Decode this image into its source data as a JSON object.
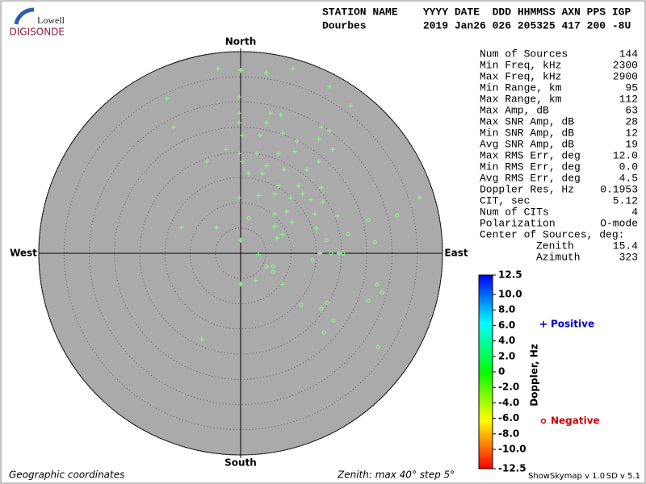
{
  "chart_data": {
    "type": "skymap",
    "logo": {
      "top": "Lowell",
      "bottom": "DIGISONDE"
    },
    "header": {
      "labels": "STATION NAME    YYYY DATE  DDD HHMMSS AXN PPS IGP",
      "values": "Dourbes         2019 Jan26 026 205325 417 200 -8U"
    },
    "directions": {
      "north": "North",
      "south": "South",
      "west": "West",
      "east": "East"
    },
    "zlim": [
      0,
      40
    ],
    "zticks": [
      5,
      10,
      15,
      20,
      25,
      30,
      35,
      40
    ],
    "plot_color": "#aaaaaa",
    "point_color": "#88ff88",
    "series": [
      {
        "name": "Positive",
        "color": "#0000cc",
        "marker": "plus",
        "x": [
          -4.5,
          0,
          5.1,
          10.4,
          17.6,
          -14.6,
          -0.3,
          21.8,
          -13.3,
          -0.3,
          5.9,
          8.0,
          16.0,
          17.6,
          -0.3,
          5.1,
          0.3,
          3.8,
          8.3,
          11.2,
          15.5,
          18.2,
          -2.9,
          -0.3,
          3.2,
          7.5,
          10.7,
          -6.7,
          0.3,
          5.1,
          8.6,
          13.1,
          15.5,
          1.6,
          4.3,
          7.5,
          11.5,
          16.0,
          -0.3,
          3.5,
          6.7,
          9.9,
          13.9,
          16.3,
          35.5,
          6.7,
          9.1,
          14.7,
          19.2,
          -11.7,
          -4.8,
          6.7,
          8.3,
          15.0,
          0,
          7.2,
          3.5,
          15.7,
          19.5,
          0,
          3.0,
          8.3,
          -7.7,
          10.2,
          12.3
        ],
        "values": [
          36.6,
          36.3,
          35.8,
          36.6,
          33.1,
          30.7,
          31.0,
          29.3,
          25.0,
          27.8,
          27.8,
          27.5,
          25.0,
          24.3,
          25.9,
          25.9,
          23.4,
          23.4,
          23.8,
          22.2,
          22.7,
          20.6,
          20.6,
          19.8,
          19.8,
          19.8,
          20.2,
          18.2,
          18.2,
          17.4,
          16.6,
          16.6,
          18.2,
          15.8,
          15.8,
          13.4,
          13.4,
          13.1,
          11.0,
          11.5,
          11.8,
          11.0,
          10.6,
          10.2,
          11.0,
          7.8,
          8.3,
          7.8,
          7.4,
          5.1,
          5.1,
          5.4,
          3.8,
          5.0,
          2.6,
          3.0,
          -0.2,
          0,
          0,
          -6.1,
          -5.4,
          -6.1,
          -17.0,
          6.2,
          11.8
        ]
      },
      {
        "name": "Negative",
        "color": "#cc0000",
        "marker": "circle",
        "x": [
          31.0,
          25.3,
          21.3,
          26.6,
          17.0,
          17.9,
          20.3,
          14.2,
          6.4,
          6.4,
          27.0,
          28.0,
          25.3,
          17.1,
          12.0,
          16.0,
          18.4,
          16.5,
          27.2,
          1.6,
          5.1
        ],
        "values": [
          7.5,
          6.6,
          3.8,
          2.2,
          2.6,
          0,
          0,
          -1.3,
          -2.6,
          -3.7,
          -6.2,
          -7.8,
          -9.4,
          -9.8,
          -10.2,
          -11.0,
          -13.3,
          -15.7,
          -18.6,
          7.0,
          -2.6
        ]
      }
    ],
    "stats": [
      [
        "Num of Sources",
        "144"
      ],
      [
        "Min Freq, kHz",
        "2300"
      ],
      [
        "Max Freq, kHz",
        "2900"
      ],
      [
        "Min Range, km",
        "95"
      ],
      [
        "Max Range, km",
        "112"
      ],
      [
        "Max Amp, dB",
        "63"
      ],
      [
        "Max SNR Amp, dB",
        "28"
      ],
      [
        "Min SNR Amp, dB",
        "12"
      ],
      [
        "Avg SNR Amp, dB",
        "19"
      ],
      [
        "Max RMS Err, deg",
        "12.0"
      ],
      [
        "Min RMS Err, deg",
        "0.0"
      ],
      [
        "Avg RMS Err, deg",
        "4.5"
      ],
      [
        "Doppler Res, Hz",
        "0.1953"
      ],
      [
        "CIT, sec",
        "5.12"
      ],
      [
        "Num of CITs",
        "4"
      ],
      [
        "Polarization",
        "O-mode"
      ]
    ],
    "center_of_sources": {
      "title": "Center of Sources, deg:",
      "rows": [
        [
          "Zenith",
          "15.4"
        ],
        [
          "Azimuth",
          "323"
        ]
      ]
    },
    "colorbar": {
      "label": "Doppler, Hz",
      "lim": [
        -12.5,
        12.5
      ],
      "ticks": [
        12.5,
        {
          "value": 10,
          "label": "10.0"
        },
        {
          "value": 8,
          "label": "8.0"
        },
        {
          "value": 6,
          "label": "6.0"
        },
        {
          "value": 4,
          "label": "4.0"
        },
        {
          "value": 2,
          "label": "2.0"
        },
        0,
        {
          "value": -2,
          "label": "-2.0"
        },
        {
          "value": -4,
          "label": "-4.0"
        },
        {
          "value": -6,
          "label": "-6.0"
        },
        {
          "value": -8,
          "label": "-8.0"
        },
        {
          "value": -10,
          "label": "-10.0"
        },
        -12.5
      ],
      "colors": [
        "#0000ff",
        "#00ffff",
        "#00ff00",
        "#ffff00",
        "#ff0000"
      ]
    },
    "footer": {
      "coords": "Geographic coordinates",
      "zenith": "Zenith: max 40°  step 5°",
      "version": "ShowSkymap v 1.0",
      "sd": "SD v 5.1"
    }
  }
}
